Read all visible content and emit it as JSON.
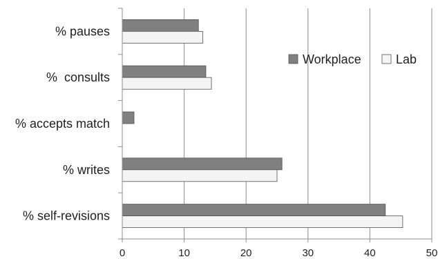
{
  "chart_data": {
    "type": "bar",
    "orientation": "horizontal",
    "categories": [
      "% pauses",
      "%  consults",
      "% accepts match",
      "% writes",
      "% self-revisions"
    ],
    "series": [
      {
        "name": "Workplace",
        "values": [
          12.3,
          13.5,
          1.9,
          25.8,
          42.5
        ],
        "color": "#808080"
      },
      {
        "name": "Lab",
        "values": [
          13.0,
          14.4,
          0,
          25.0,
          45.3
        ],
        "color": "#f4f4f4"
      }
    ],
    "xlim": [
      0,
      50
    ],
    "xticks": [
      0,
      10,
      20,
      30,
      40,
      50
    ],
    "grid": "vertical",
    "legend": "inside-upper-right"
  }
}
